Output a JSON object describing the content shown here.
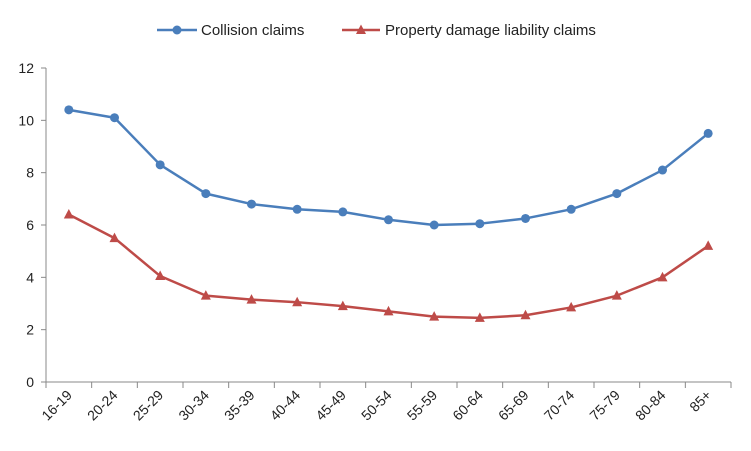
{
  "chart_data": {
    "type": "line",
    "title": "",
    "xlabel": "",
    "ylabel": "",
    "categories": [
      "16-19",
      "20-24",
      "25-29",
      "30-34",
      "35-39",
      "40-44",
      "45-49",
      "50-54",
      "55-59",
      "60-64",
      "65-69",
      "70-74",
      "75-79",
      "80-84",
      "85+"
    ],
    "ylim": [
      0,
      12
    ],
    "yticks": [
      "0",
      "2",
      "4",
      "6",
      "8",
      "10",
      "12"
    ],
    "grid": false,
    "legend_position": "top-center",
    "series": [
      {
        "name": "Collision claims",
        "color": "#4a7ebb",
        "marker": "circle",
        "values": [
          10.4,
          10.1,
          8.3,
          7.2,
          6.8,
          6.6,
          6.5,
          6.2,
          6.0,
          6.05,
          6.25,
          6.6,
          7.2,
          8.1,
          9.5
        ]
      },
      {
        "name": "Property damage liability claims",
        "color": "#be4b48",
        "marker": "triangle",
        "values": [
          6.4,
          5.5,
          4.05,
          3.3,
          3.15,
          3.05,
          2.9,
          2.7,
          2.5,
          2.45,
          2.55,
          2.85,
          3.3,
          4.0,
          5.2
        ]
      }
    ]
  }
}
